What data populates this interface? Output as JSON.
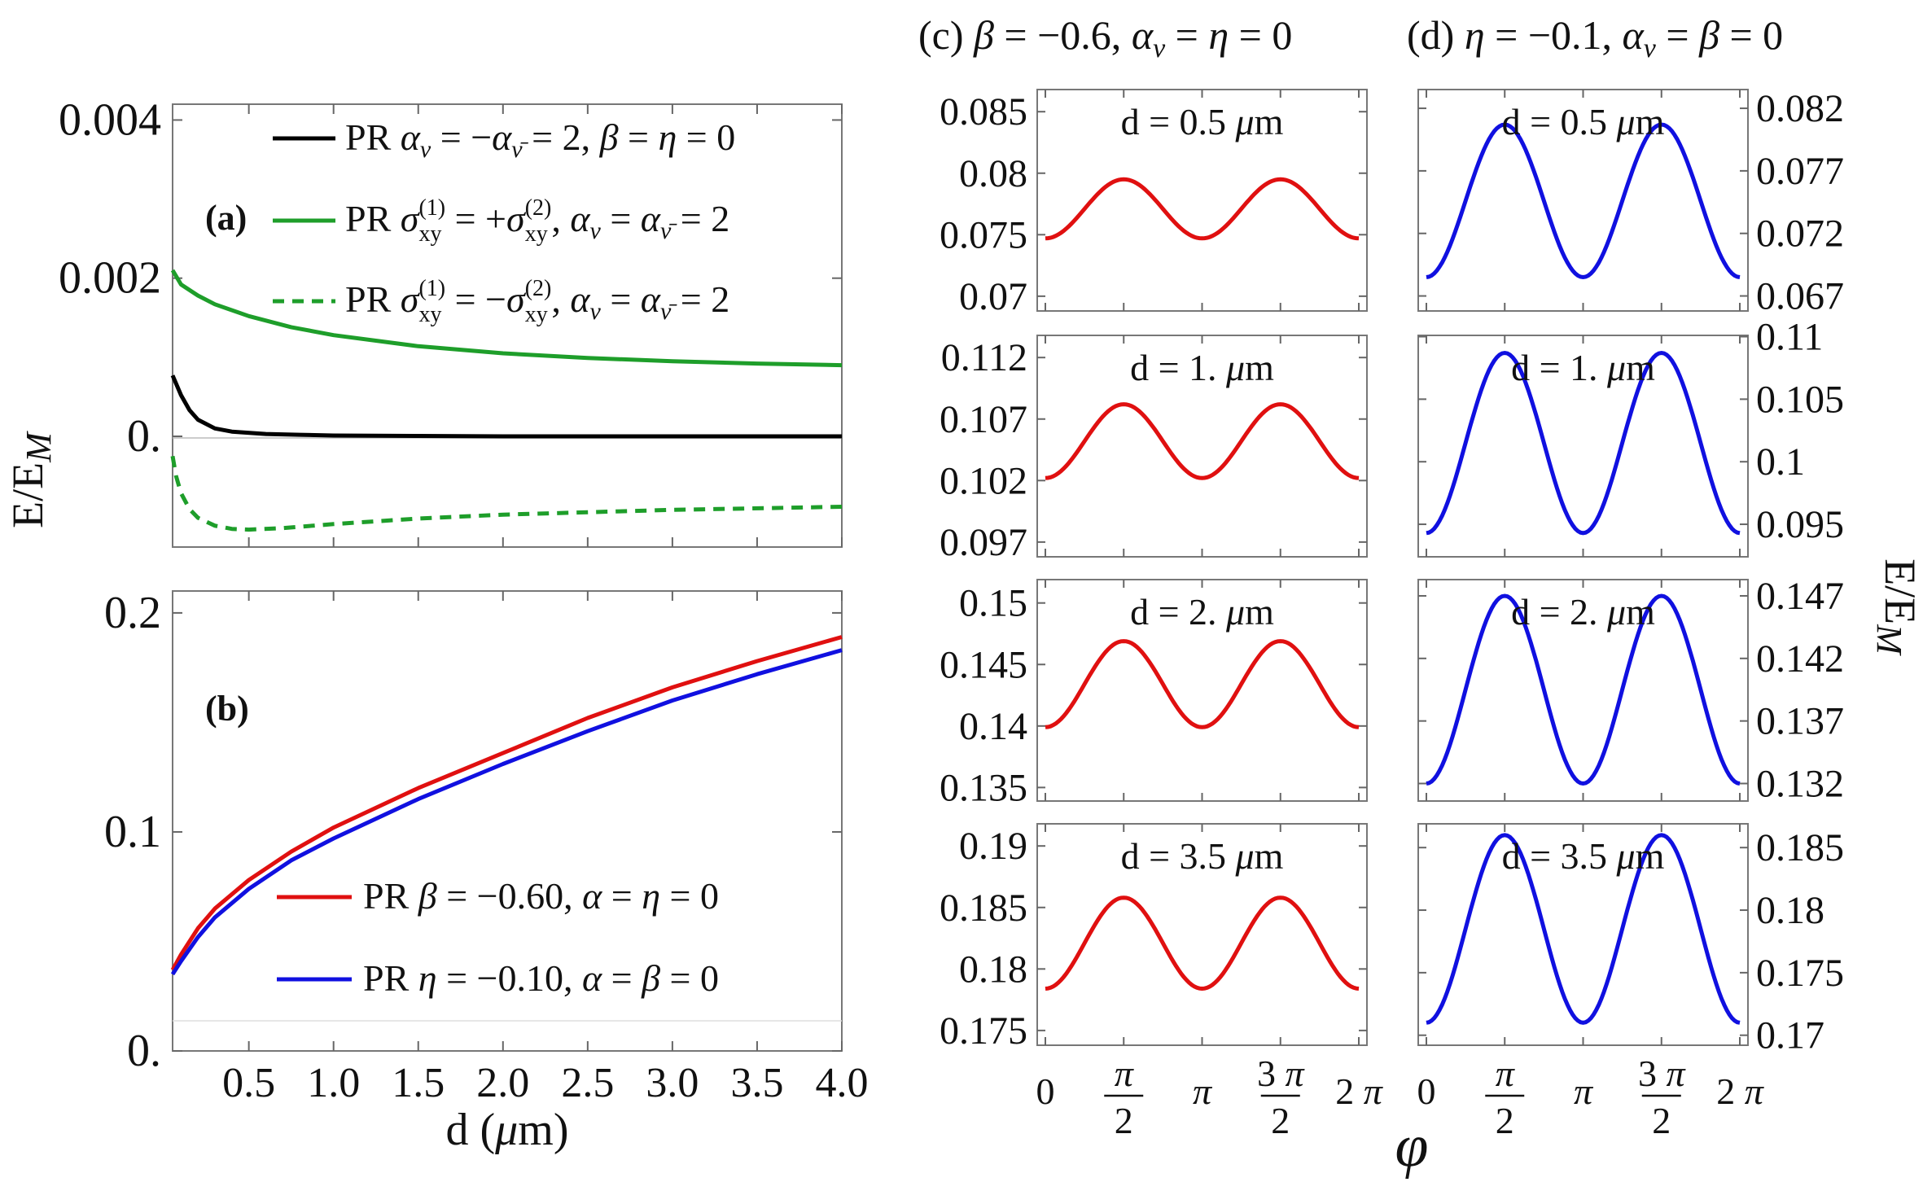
{
  "figure": {
    "y_label": "E/E",
    "y_label_sub": "M",
    "phi_label": "φ"
  },
  "chart_data": [
    {
      "id": "a",
      "type": "line",
      "panel_label": "(a)",
      "xlim": [
        0.05,
        4.0
      ],
      "ylim": [
        -0.0014,
        0.0042
      ],
      "yticks": [
        "0.004",
        "0.002",
        "0."
      ],
      "ytick_values": [
        0.004,
        0.002,
        0.0
      ],
      "x_tick_values": [
        0.5,
        1.0,
        1.5,
        2.0,
        2.5,
        3.0,
        3.5,
        4.0
      ],
      "series": [
        {
          "name": "PR α_ν = −α_ν̄ = 2, β = η = 0",
          "color": "#000000",
          "dash": false,
          "x": [
            0.05,
            0.1,
            0.15,
            0.2,
            0.3,
            0.4,
            0.6,
            0.8,
            1.0,
            1.5,
            2.0,
            3.0,
            4.0
          ],
          "y": [
            0.00077,
            0.00052,
            0.00033,
            0.00021,
            0.0001,
            6e-05,
            3e-05,
            2e-05,
            1e-05,
            5e-06,
            0.0,
            0.0,
            0.0
          ]
        },
        {
          "name": "PR σ_xy^(1) = +σ_xy^(2), α_ν = α_ν̄ = 2",
          "color": "#1e9e2a",
          "dash": false,
          "x": [
            0.05,
            0.1,
            0.2,
            0.3,
            0.5,
            0.75,
            1.0,
            1.5,
            2.0,
            2.5,
            3.0,
            3.5,
            4.0
          ],
          "y": [
            0.0021,
            0.00192,
            0.00178,
            0.00167,
            0.00152,
            0.00138,
            0.00128,
            0.00114,
            0.00105,
            0.00099,
            0.00095,
            0.00092,
            0.0009
          ]
        },
        {
          "name": "PR σ_xy^(1) = −σ_xy^(2), α_ν = α_ν̄ = 2",
          "color": "#1e9e2a",
          "dash": true,
          "x": [
            0.05,
            0.07,
            0.1,
            0.15,
            0.2,
            0.3,
            0.4,
            0.5,
            0.7,
            1.0,
            1.5,
            2.0,
            3.0,
            4.0
          ],
          "y": [
            -0.00025,
            -0.0005,
            -0.00072,
            -0.00092,
            -0.00103,
            -0.00113,
            -0.00117,
            -0.00118,
            -0.00116,
            -0.00111,
            -0.00104,
            -0.00099,
            -0.00093,
            -0.00089
          ]
        }
      ]
    },
    {
      "id": "b",
      "type": "line",
      "panel_label": "(b)",
      "xlim": [
        0.05,
        4.0
      ],
      "ylim": [
        0.0,
        0.21
      ],
      "yticks": [
        "0.2",
        "0.1",
        "0."
      ],
      "ytick_values": [
        0.2,
        0.1,
        0.0
      ],
      "x_tick_values": [
        0.5,
        1.0,
        1.5,
        2.0,
        2.5,
        3.0,
        3.5,
        4.0
      ],
      "xticks": [
        "0.5",
        "1.0",
        "1.5",
        "2.0",
        "2.5",
        "3.0",
        "3.5",
        "4.0"
      ],
      "xlabel": "d (μm)",
      "series": [
        {
          "name": "PR β = −0.60, α = η = 0",
          "color": "#e01010",
          "x": [
            0.05,
            0.1,
            0.2,
            0.3,
            0.5,
            0.75,
            1.0,
            1.5,
            2.0,
            2.5,
            3.0,
            3.5,
            4.0
          ],
          "y": [
            0.037,
            0.044,
            0.056,
            0.065,
            0.078,
            0.091,
            0.102,
            0.12,
            0.136,
            0.152,
            0.166,
            0.178,
            0.189
          ]
        },
        {
          "name": "PR η = −0.10, α = β = 0",
          "color": "#1010e0",
          "x": [
            0.05,
            0.1,
            0.2,
            0.3,
            0.5,
            0.75,
            1.0,
            1.5,
            2.0,
            2.5,
            3.0,
            3.5,
            4.0
          ],
          "y": [
            0.035,
            0.041,
            0.052,
            0.061,
            0.074,
            0.087,
            0.097,
            0.115,
            0.131,
            0.146,
            0.16,
            0.172,
            0.183
          ]
        }
      ]
    },
    {
      "id": "c1",
      "type": "line",
      "column_title": "(c) β = −0.6, α_ν = η = 0",
      "inner_label": "d = 0.5 μm",
      "color": "#e01010",
      "ylim": [
        0.0688,
        0.0868
      ],
      "yticks": [
        "0.085",
        "0.08",
        "0.075",
        "0.07"
      ],
      "ytick_values": [
        0.085,
        0.08,
        0.075,
        0.07
      ],
      "curve": {
        "center": 0.0771,
        "amplitude": 0.0024
      }
    },
    {
      "id": "c2",
      "type": "line",
      "inner_label": "d = 1. μm",
      "color": "#e01010",
      "ylim": [
        0.0958,
        0.1138
      ],
      "yticks": [
        "0.112",
        "0.107",
        "0.102",
        "0.097"
      ],
      "ytick_values": [
        0.112,
        0.107,
        0.102,
        0.097
      ],
      "curve": {
        "center": 0.1052,
        "amplitude": 0.003
      }
    },
    {
      "id": "c3",
      "type": "line",
      "inner_label": "d = 2. μm",
      "color": "#e01010",
      "ylim": [
        0.1339,
        0.1519
      ],
      "yticks": [
        "0.15",
        "0.145",
        "0.14",
        "0.135"
      ],
      "ytick_values": [
        0.15,
        0.145,
        0.14,
        0.135
      ],
      "curve": {
        "center": 0.1434,
        "amplitude": 0.0035
      }
    },
    {
      "id": "c4",
      "type": "line",
      "inner_label": "d = 3.5 μm",
      "color": "#e01010",
      "ylim": [
        0.1738,
        0.1918
      ],
      "yticks": [
        "0.19",
        "0.185",
        "0.18",
        "0.175"
      ],
      "ytick_values": [
        0.19,
        0.185,
        0.18,
        0.175
      ],
      "curve": {
        "center": 0.1821,
        "amplitude": 0.0037
      },
      "xticks": [
        "0",
        "π/2",
        "π",
        "3π/2",
        "2π"
      ],
      "xtick_values": [
        0,
        1.5708,
        3.1416,
        4.7124,
        6.2832
      ]
    },
    {
      "id": "d1",
      "type": "line",
      "column_title": "(d) η = −0.1, α_ν = β = 0",
      "inner_label": "d = 0.5 μm",
      "color": "#1010e0",
      "ylim": [
        0.0658,
        0.0835
      ],
      "yticks": [
        "0.082",
        "0.077",
        "0.072",
        "0.067"
      ],
      "ytick_values": [
        0.082,
        0.077,
        0.072,
        0.067
      ],
      "curve": {
        "center": 0.0746,
        "amplitude": 0.0061
      }
    },
    {
      "id": "d2",
      "type": "line",
      "inner_label": "d = 1. μm",
      "color": "#1010e0",
      "ylim": [
        0.0924,
        0.1101
      ],
      "yticks": [
        "0.11",
        "0.105",
        "0.1",
        "0.095"
      ],
      "ytick_values": [
        0.11,
        0.105,
        0.1,
        0.095
      ],
      "curve": {
        "center": 0.1015,
        "amplitude": 0.0072
      }
    },
    {
      "id": "d3",
      "type": "line",
      "inner_label": "d = 2. μm",
      "color": "#1010e0",
      "ylim": [
        0.1306,
        0.1483
      ],
      "yticks": [
        "0.147",
        "0.142",
        "0.137",
        "0.132"
      ],
      "ytick_values": [
        0.147,
        0.142,
        0.137,
        0.132
      ],
      "curve": {
        "center": 0.1395,
        "amplitude": 0.0075
      }
    },
    {
      "id": "d4",
      "type": "line",
      "inner_label": "d = 3.5 μm",
      "color": "#1010e0",
      "ylim": [
        0.1692,
        0.1869
      ],
      "yticks": [
        "0.185",
        "0.18",
        "0.175",
        "0.17"
      ],
      "ytick_values": [
        0.185,
        0.18,
        0.175,
        0.17
      ],
      "curve": {
        "center": 0.1785,
        "amplitude": 0.0075
      },
      "xticks": [
        "0",
        "π/2",
        "π",
        "3π/2",
        "2π"
      ],
      "xtick_values": [
        0,
        1.5708,
        3.1416,
        4.7124,
        6.2832
      ]
    }
  ]
}
